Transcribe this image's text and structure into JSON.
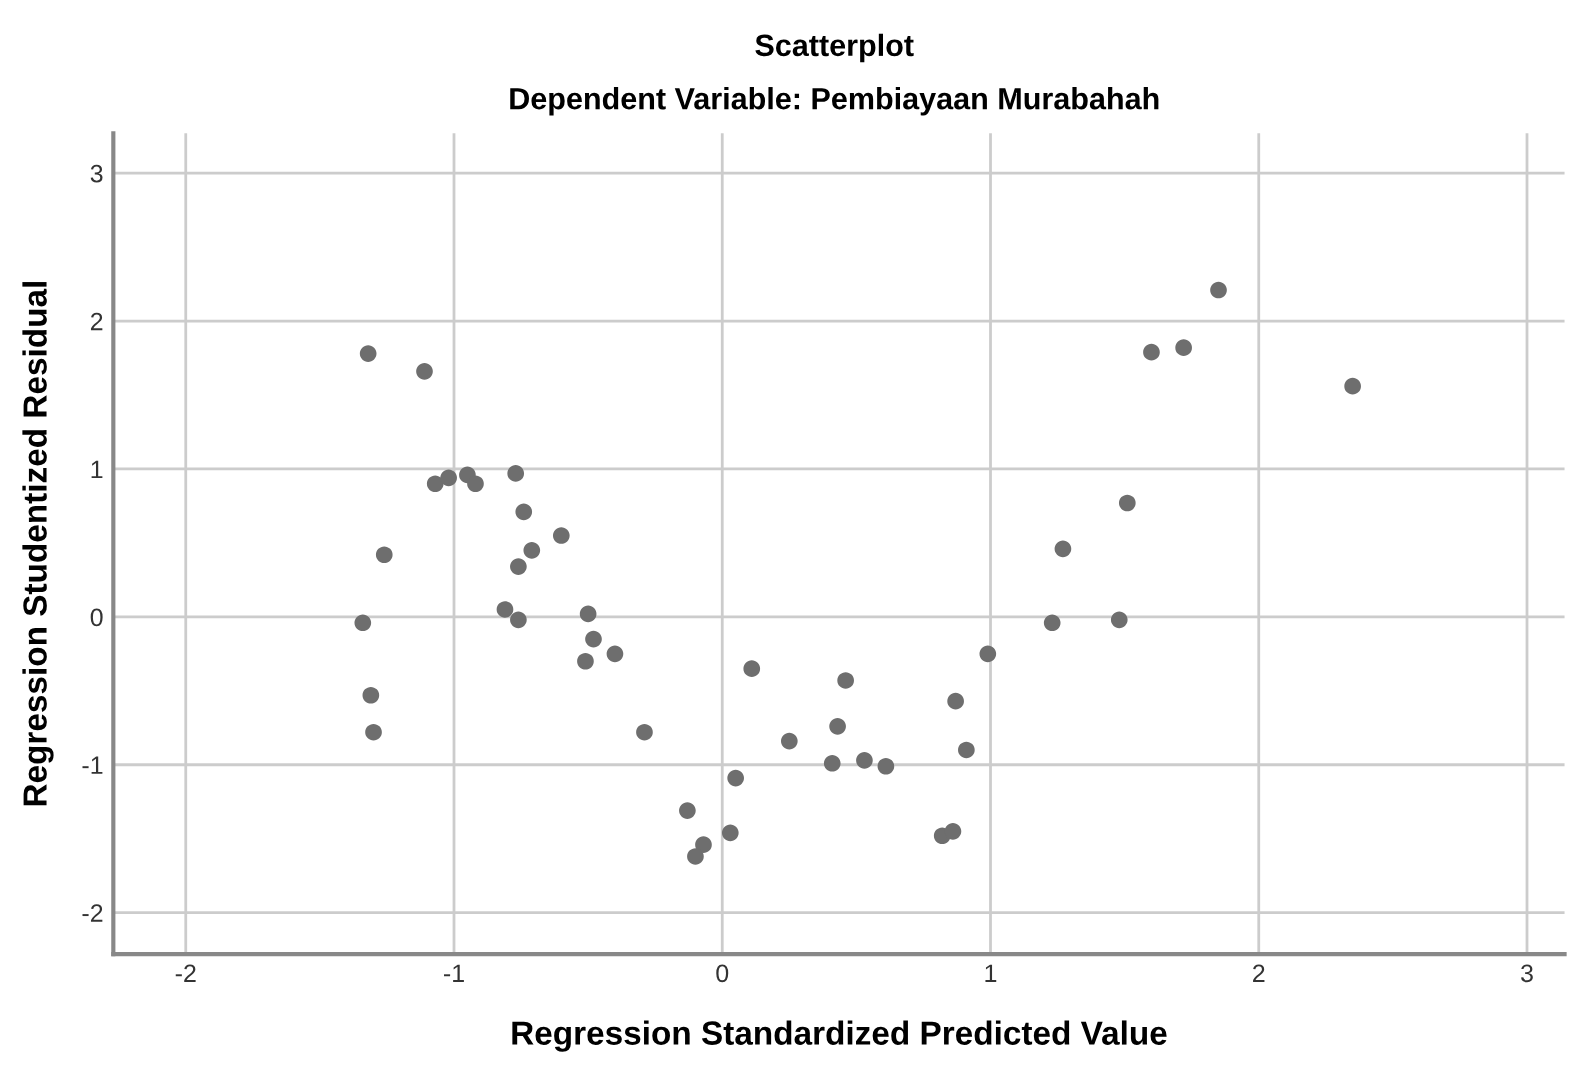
{
  "chart_data": {
    "type": "scatter",
    "title": "Scatterplot",
    "subtitle": "Dependent Variable: Pembiayaan Murabahah",
    "xlabel": "Regression Standardized Predicted Value",
    "ylabel": "Regression Studentized Residual",
    "x": [
      -1.32,
      -1.11,
      -1.07,
      -1.02,
      -0.95,
      -0.92,
      -0.77,
      -0.74,
      -0.6,
      -0.71,
      -1.26,
      -0.76,
      -0.81,
      -0.76,
      -1.34,
      -0.5,
      -0.48,
      -0.51,
      -0.4,
      -1.31,
      -1.3,
      -0.29,
      0.11,
      0.25,
      0.05,
      -0.13,
      0.03,
      -0.07,
      -0.1,
      0.46,
      0.43,
      0.41,
      0.53,
      0.61,
      0.87,
      0.91,
      0.82,
      0.86,
      0.99,
      1.23,
      1.48,
      1.27,
      1.51,
      1.6,
      1.72,
      1.85,
      2.35
    ],
    "values": [
      1.78,
      1.66,
      0.9,
      0.94,
      0.96,
      0.9,
      0.97,
      0.71,
      0.55,
      0.45,
      0.42,
      0.34,
      0.05,
      -0.02,
      -0.04,
      0.02,
      -0.15,
      -0.3,
      -0.25,
      -0.53,
      -0.78,
      -0.78,
      -0.35,
      -0.84,
      -1.09,
      -1.31,
      -1.46,
      -1.54,
      -1.62,
      -0.43,
      -0.74,
      -0.99,
      -0.97,
      -1.01,
      -0.57,
      -0.9,
      -1.48,
      -1.45,
      -0.25,
      -0.04,
      -0.02,
      0.46,
      0.77,
      1.79,
      1.82,
      2.21,
      1.56
    ],
    "color": "#6e6e6e",
    "marker": "circle",
    "xlim": [
      -2.27,
      3.14
    ],
    "ylim": [
      -2.28,
      3.27
    ],
    "xticks": [
      -2,
      -1,
      0,
      1,
      2,
      3
    ],
    "yticks": [
      -2,
      -1,
      0,
      1,
      2,
      3
    ],
    "grid": true
  }
}
